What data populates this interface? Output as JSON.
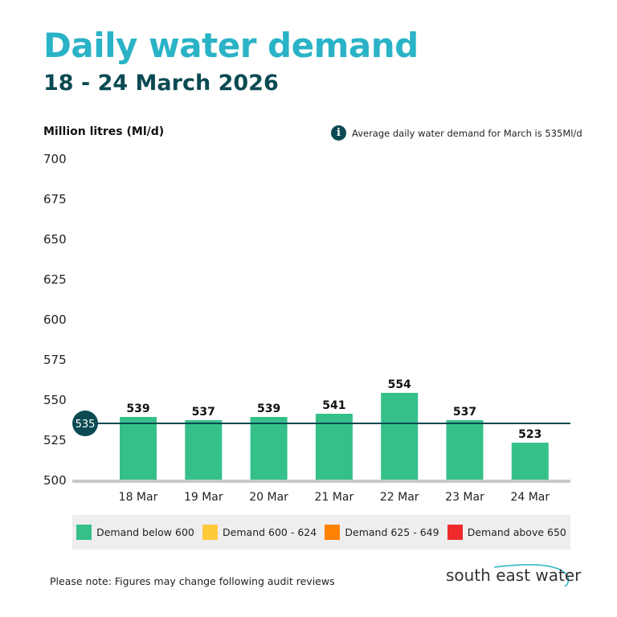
{
  "header": {
    "title": "Daily water demand",
    "subtitle": "18 - 24 March 2026"
  },
  "note": {
    "icon": "info-icon",
    "text": "Average daily water demand for March is 535Ml/d"
  },
  "chart_data": {
    "type": "bar",
    "ylabel": "Million litres (Ml/d)",
    "ylim": [
      500,
      700
    ],
    "yticks": [
      700,
      675,
      650,
      625,
      600,
      575,
      550,
      525,
      500
    ],
    "categories": [
      "18 Mar",
      "19 Mar",
      "20 Mar",
      "21 Mar",
      "22 Mar",
      "23 Mar",
      "24 Mar"
    ],
    "values": [
      539,
      537,
      539,
      541,
      554,
      537,
      523
    ],
    "bar_color": "#35c08a",
    "average": {
      "value": 535,
      "label": "535",
      "color": "#0b4a52"
    },
    "grid": false
  },
  "legend": [
    {
      "label": "Demand below 600",
      "color": "#35c08a"
    },
    {
      "label": "Demand 600 - 624",
      "color": "#ffc93c"
    },
    {
      "label": "Demand 625 - 649",
      "color": "#ff8200"
    },
    {
      "label": "Demand above 650",
      "color": "#ee2a2a"
    }
  ],
  "footnote": "Please note: Figures may change following audit reviews",
  "logo": "south east water"
}
